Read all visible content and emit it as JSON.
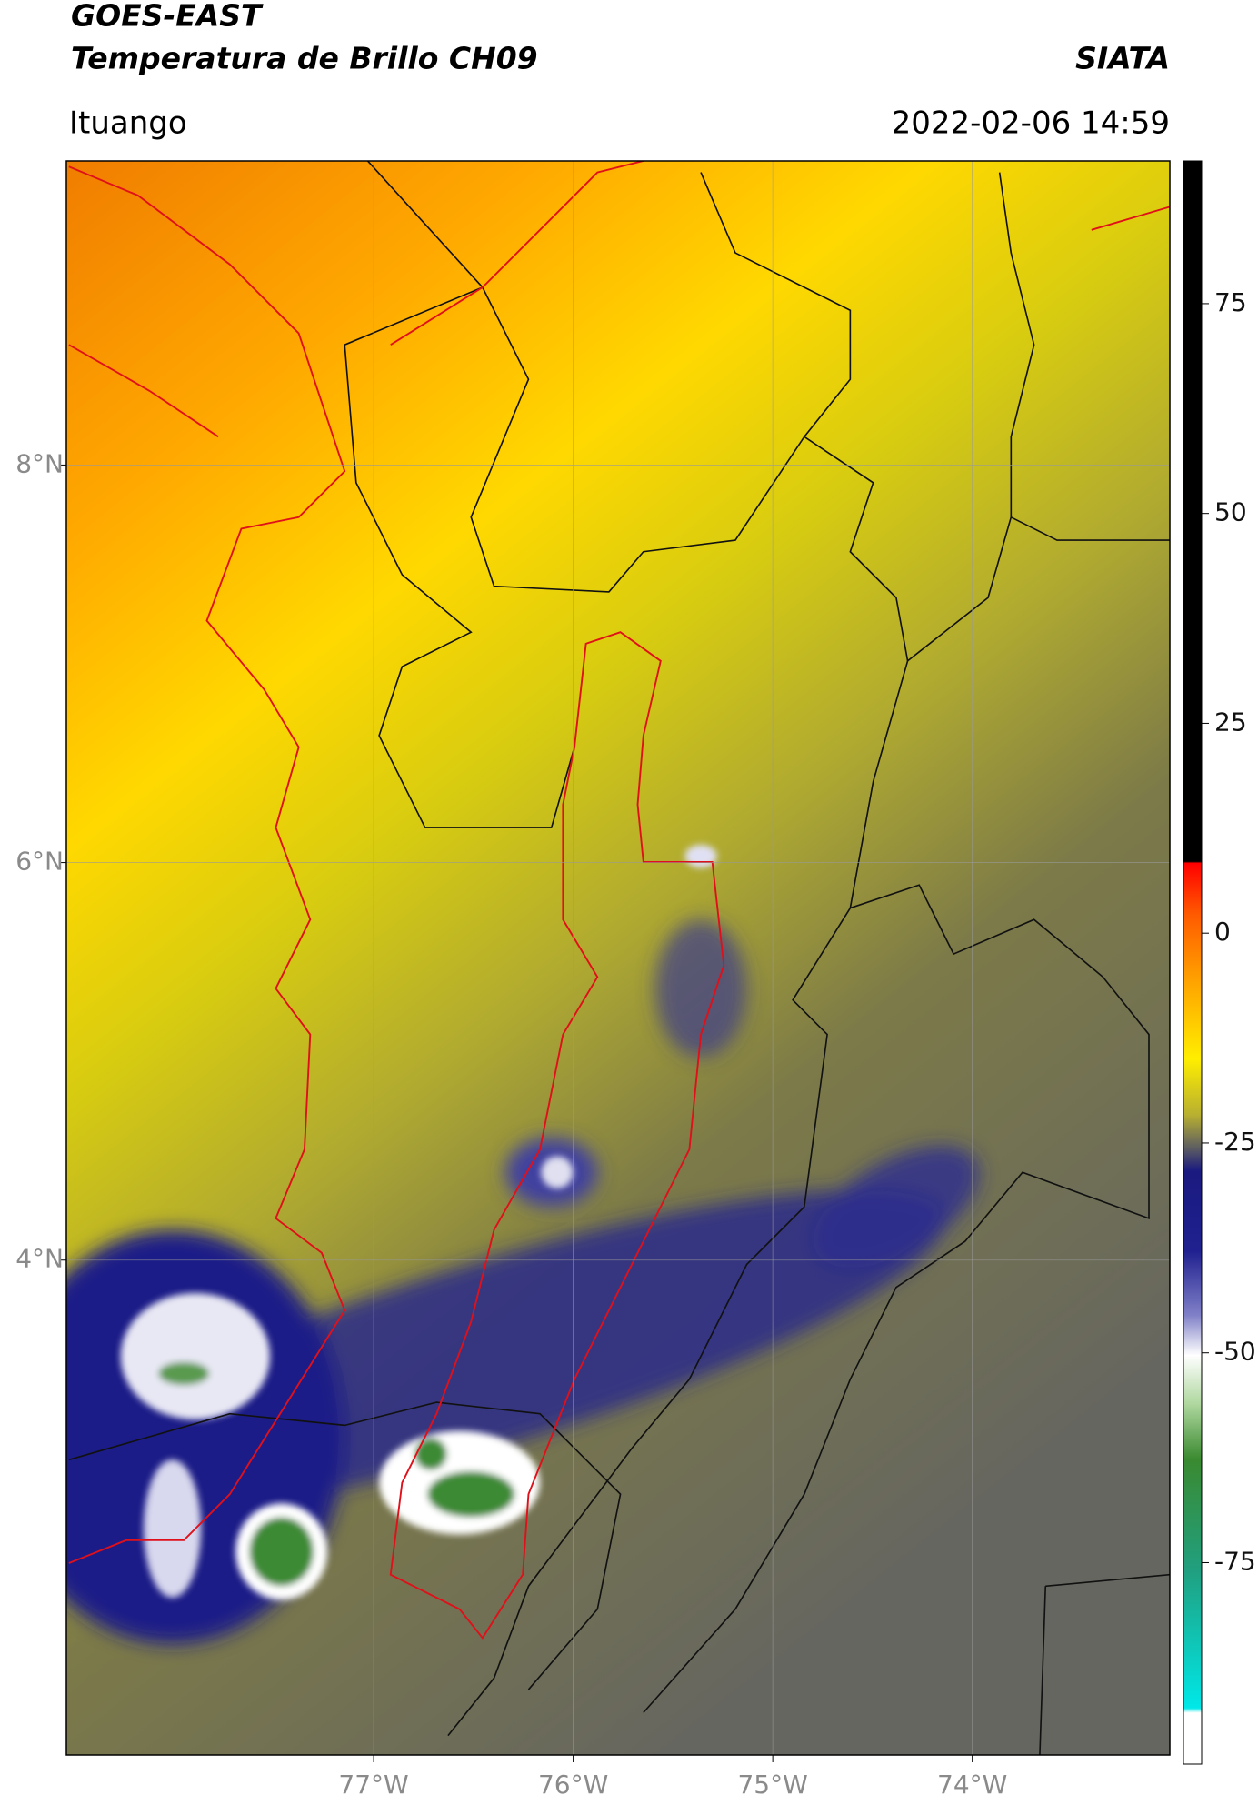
{
  "header": {
    "title_line1": "GOES-EAST",
    "title_line2": "Temperatura de Brillo CH09",
    "org": "SIATA",
    "location": "Ituango",
    "datetime": "2022-02-06 14:59"
  },
  "map": {
    "xlim": [
      -78.54,
      -73.01
    ],
    "ylim": [
      1.51,
      9.53
    ],
    "xticks": [
      {
        "value": -77,
        "label": "77°W"
      },
      {
        "value": -76,
        "label": "76°W"
      },
      {
        "value": -75,
        "label": "75°W"
      },
      {
        "value": -74,
        "label": "74°W"
      }
    ],
    "yticks": [
      {
        "value": 8,
        "label": "8°N"
      },
      {
        "value": 6,
        "label": "6°N"
      },
      {
        "value": 4,
        "label": "4°N"
      }
    ]
  },
  "colorbar": {
    "lim": [
      -99,
      92
    ],
    "ticks": [
      75,
      50,
      25,
      0,
      -25,
      -50,
      -75
    ]
  }
}
